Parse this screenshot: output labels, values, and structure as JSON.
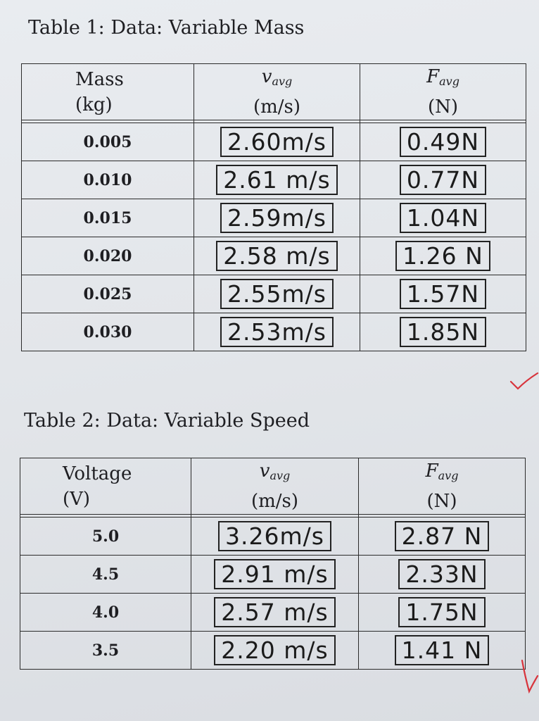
{
  "table1": {
    "caption": "Table 1: Data: Variable Mass",
    "headers": [
      {
        "line1": "Mass",
        "line2": "(kg)"
      },
      {
        "symbol": "v",
        "sub": "avg",
        "line2": "(m/s)"
      },
      {
        "symbol": "F",
        "sub": "avg",
        "line2": "(N)"
      }
    ],
    "rows": [
      {
        "x": "0.005",
        "v": "2.60m/s",
        "f": "0.49N"
      },
      {
        "x": "0.010",
        "v": "2.61 m/s",
        "f": "0.77N"
      },
      {
        "x": "0.015",
        "v": "2.59m/s",
        "f": "1.04N"
      },
      {
        "x": "0.020",
        "v": "2.58 m/s",
        "f": "1.26 N"
      },
      {
        "x": "0.025",
        "v": "2.55m/s",
        "f": "1.57N"
      },
      {
        "x": "0.030",
        "v": "2.53m/s",
        "f": "1.85N"
      }
    ]
  },
  "table2": {
    "caption": "Table 2: Data: Variable Speed",
    "headers": [
      {
        "line1": "Voltage",
        "line2": "(V)"
      },
      {
        "symbol": "v",
        "sub": "avg",
        "line2": "(m/s)"
      },
      {
        "symbol": "F",
        "sub": "avg",
        "line2": "(N)"
      }
    ],
    "rows": [
      {
        "x": "5.0",
        "v": "3.26m/s",
        "f": "2.87 N"
      },
      {
        "x": "4.5",
        "v": "2.91 m/s",
        "f": "2.33N"
      },
      {
        "x": "4.0",
        "v": "2.57 m/s",
        "f": "1.75N"
      },
      {
        "x": "3.5",
        "v": "2.20 m/s",
        "f": "1.41 N"
      }
    ]
  },
  "colors": {
    "check_mark": "#d8343c",
    "ink": "#1b1b1b"
  }
}
